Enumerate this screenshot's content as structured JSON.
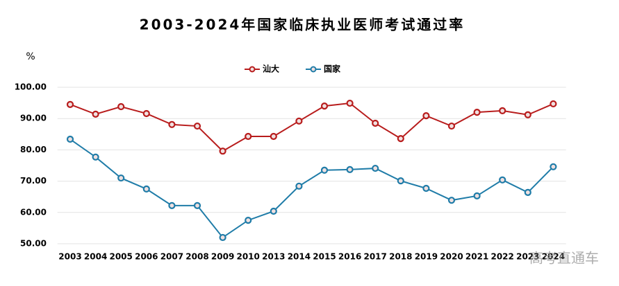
{
  "chart_data": {
    "type": "line",
    "title": "2003-2024年国家临床执业医师考试通过率",
    "y_label": "%",
    "watermark": "高考直通车",
    "categories": [
      "2003",
      "2004",
      "2005",
      "2006",
      "2007",
      "2008",
      "2009",
      "2010",
      "2013",
      "2014",
      "2015",
      "2016",
      "2017",
      "2018",
      "2019",
      "2020",
      "2021",
      "2022",
      "2023",
      "2024"
    ],
    "series": [
      {
        "name": "汕大",
        "color": "#b81c1c",
        "values": [
          94.5,
          91.4,
          93.8,
          91.6,
          88.1,
          87.6,
          79.6,
          84.3,
          84.3,
          89.2,
          94.0,
          94.9,
          88.5,
          83.6,
          90.9,
          87.6,
          92.0,
          92.5,
          91.2,
          94.7
        ]
      },
      {
        "name": "国家",
        "color": "#1f7ca8",
        "values": [
          83.4,
          77.7,
          71.0,
          67.5,
          62.2,
          62.2,
          52.0,
          57.5,
          60.4,
          68.4,
          73.5,
          73.7,
          74.1,
          70.1,
          67.7,
          63.9,
          65.3,
          70.4,
          66.4,
          74.6
        ]
      }
    ],
    "ylim": [
      50,
      100
    ],
    "yticks": [
      {
        "value": 50,
        "label": "50.00"
      },
      {
        "value": 60,
        "label": "60.00"
      },
      {
        "value": 70,
        "label": "70.00"
      },
      {
        "value": 80,
        "label": "80.00"
      },
      {
        "value": 90,
        "label": "90.00"
      },
      {
        "value": 100,
        "label": "100.00"
      }
    ],
    "grid": true,
    "legend": "top"
  }
}
